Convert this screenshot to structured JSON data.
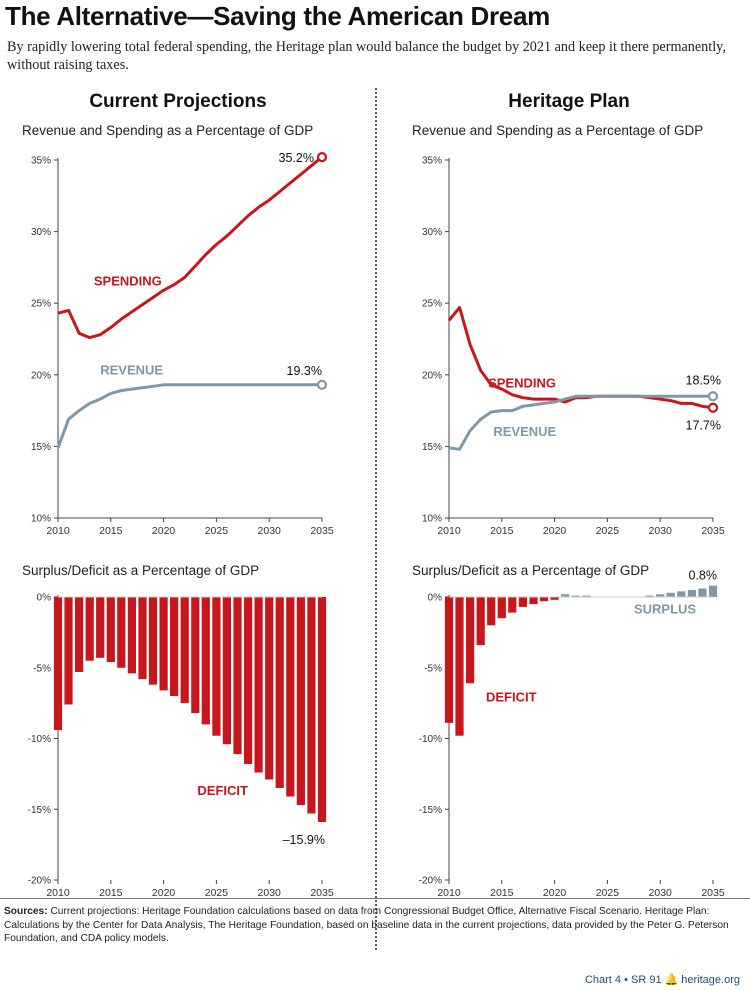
{
  "header": {
    "title": "The Alternative—Saving the American Dream",
    "subtitle": "By rapidly lowering total federal spending, the Heritage plan would balance the budget by 2021 and keep it there permanently, without raising taxes."
  },
  "left": {
    "heading": "Current Projections",
    "top_label": "Revenue and Spending as a Percentage of GDP",
    "bottom_label": "Surplus/Deficit as a Percentage of GDP"
  },
  "right": {
    "heading": "Heritage Plan",
    "top_label": "Revenue and Spending as a Percentage of GDP",
    "bottom_label": "Surplus/Deficit as a Percentage of GDP"
  },
  "colors": {
    "spending": "#c8161d",
    "revenue": "#7f98a8",
    "deficit": "#c8161d",
    "surplus": "#7f98a8",
    "axis": "#444444"
  },
  "chart_data": [
    {
      "id": "current-rev-spend",
      "type": "line",
      "title": "Revenue and Spending as a Percentage of GDP",
      "xlim": [
        2010,
        2035
      ],
      "ylim": [
        10,
        35
      ],
      "x_ticks": [
        "2010",
        "2015",
        "2020",
        "2025",
        "2030",
        "2035"
      ],
      "y_ticks": [
        {
          "v": 10,
          "label": "10%"
        },
        {
          "v": 15,
          "label": "15%"
        },
        {
          "v": 20,
          "label": "20%"
        },
        {
          "v": 25,
          "label": "25%"
        },
        {
          "v": 30,
          "label": "30%"
        },
        {
          "v": 35,
          "label": "35%"
        }
      ],
      "x": [
        2010,
        2011,
        2012,
        2013,
        2014,
        2015,
        2016,
        2017,
        2018,
        2019,
        2020,
        2021,
        2022,
        2023,
        2024,
        2025,
        2026,
        2027,
        2028,
        2029,
        2030,
        2031,
        2032,
        2033,
        2034,
        2035
      ],
      "series": [
        {
          "name": "SPENDING",
          "color_key": "spending",
          "values": [
            24.3,
            24.5,
            22.9,
            22.6,
            22.8,
            23.3,
            23.9,
            24.4,
            24.9,
            25.4,
            25.9,
            26.3,
            26.8,
            27.6,
            28.4,
            29.1,
            29.7,
            30.4,
            31.1,
            31.7,
            32.2,
            32.8,
            33.4,
            34.0,
            34.6,
            35.2
          ],
          "end_label": "35.2%"
        },
        {
          "name": "REVENUE",
          "color_key": "revenue",
          "values": [
            14.9,
            16.9,
            17.5,
            18.0,
            18.3,
            18.7,
            18.9,
            19.0,
            19.1,
            19.2,
            19.3,
            19.3,
            19.3,
            19.3,
            19.3,
            19.3,
            19.3,
            19.3,
            19.3,
            19.3,
            19.3,
            19.3,
            19.3,
            19.3,
            19.3,
            19.3
          ],
          "end_label": "19.3%"
        }
      ]
    },
    {
      "id": "current-deficit",
      "type": "bar",
      "title": "Surplus/Deficit as a Percentage of GDP",
      "xlim": [
        2010,
        2035
      ],
      "ylim": [
        -20,
        0
      ],
      "x_ticks": [
        "2010",
        "2015",
        "2020",
        "2025",
        "2030",
        "2035"
      ],
      "y_ticks": [
        {
          "v": 0,
          "label": "0%"
        },
        {
          "v": -5,
          "label": "-5%"
        },
        {
          "v": -10,
          "label": "-10%"
        },
        {
          "v": -15,
          "label": "-15%"
        },
        {
          "v": -20,
          "label": "-20%"
        }
      ],
      "x": [
        2010,
        2011,
        2012,
        2013,
        2014,
        2015,
        2016,
        2017,
        2018,
        2019,
        2020,
        2021,
        2022,
        2023,
        2024,
        2025,
        2026,
        2027,
        2028,
        2029,
        2030,
        2031,
        2032,
        2033,
        2034,
        2035
      ],
      "values": [
        -9.4,
        -7.6,
        -5.3,
        -4.5,
        -4.3,
        -4.6,
        -5.0,
        -5.4,
        -5.8,
        -6.2,
        -6.6,
        -7.0,
        -7.5,
        -8.2,
        -9.0,
        -9.8,
        -10.4,
        -11.1,
        -11.8,
        -12.4,
        -12.9,
        -13.5,
        -14.1,
        -14.7,
        -15.3,
        -15.9
      ],
      "color_key": "deficit",
      "labels": {
        "deficit": "DEFICIT"
      },
      "end_label": "–15.9%"
    },
    {
      "id": "heritage-rev-spend",
      "type": "line",
      "title": "Revenue and Spending as a Percentage of GDP",
      "xlim": [
        2010,
        2035
      ],
      "ylim": [
        10,
        35
      ],
      "x_ticks": [
        "2010",
        "2015",
        "2020",
        "2025",
        "2030",
        "2035"
      ],
      "y_ticks": [
        {
          "v": 10,
          "label": "10%"
        },
        {
          "v": 15,
          "label": "15%"
        },
        {
          "v": 20,
          "label": "20%"
        },
        {
          "v": 25,
          "label": "25%"
        },
        {
          "v": 30,
          "label": "30%"
        },
        {
          "v": 35,
          "label": "35%"
        }
      ],
      "x": [
        2010,
        2011,
        2012,
        2013,
        2014,
        2015,
        2016,
        2017,
        2018,
        2019,
        2020,
        2021,
        2022,
        2023,
        2024,
        2025,
        2026,
        2027,
        2028,
        2029,
        2030,
        2031,
        2032,
        2033,
        2034,
        2035
      ],
      "series": [
        {
          "name": "SPENDING",
          "color_key": "spending",
          "values": [
            23.8,
            24.7,
            22.1,
            20.3,
            19.3,
            19.0,
            18.6,
            18.4,
            18.3,
            18.3,
            18.3,
            18.1,
            18.4,
            18.4,
            18.5,
            18.5,
            18.5,
            18.5,
            18.5,
            18.4,
            18.3,
            18.2,
            18.0,
            18.0,
            17.8,
            17.7
          ],
          "end_label": "17.7%"
        },
        {
          "name": "REVENUE",
          "color_key": "revenue",
          "values": [
            14.9,
            14.8,
            16.1,
            16.9,
            17.4,
            17.5,
            17.5,
            17.8,
            17.9,
            18.0,
            18.1,
            18.3,
            18.5,
            18.5,
            18.5,
            18.5,
            18.5,
            18.5,
            18.5,
            18.5,
            18.5,
            18.5,
            18.5,
            18.5,
            18.5,
            18.5
          ],
          "end_label": "18.5%"
        }
      ]
    },
    {
      "id": "heritage-deficit",
      "type": "bar",
      "title": "Surplus/Deficit as a Percentage of GDP",
      "xlim": [
        2010,
        2035
      ],
      "ylim": [
        -20,
        0
      ],
      "x_ticks": [
        "2010",
        "2015",
        "2020",
        "2025",
        "2030",
        "2035"
      ],
      "y_ticks": [
        {
          "v": 0,
          "label": "0%"
        },
        {
          "v": -5,
          "label": "-5%"
        },
        {
          "v": -10,
          "label": "-10%"
        },
        {
          "v": -15,
          "label": "-15%"
        },
        {
          "v": -20,
          "label": "-20%"
        }
      ],
      "x": [
        2010,
        2011,
        2012,
        2013,
        2014,
        2015,
        2016,
        2017,
        2018,
        2019,
        2020,
        2021,
        2022,
        2023,
        2024,
        2025,
        2026,
        2027,
        2028,
        2029,
        2030,
        2031,
        2032,
        2033,
        2034,
        2035
      ],
      "values": [
        -8.9,
        -9.8,
        -6.1,
        -3.4,
        -2.0,
        -1.5,
        -1.1,
        -0.7,
        -0.5,
        -0.3,
        -0.2,
        0.2,
        0.1,
        0.1,
        0.0,
        0.0,
        0.0,
        0.0,
        0.0,
        0.1,
        0.2,
        0.3,
        0.4,
        0.5,
        0.6,
        0.8
      ],
      "color_key": "deficit",
      "labels": {
        "deficit": "DEFICIT",
        "surplus": "SURPLUS"
      },
      "end_label": "0.8%"
    }
  ],
  "footer": {
    "sources_label": "Sources:",
    "sources_text": " Current projections: Heritage Foundation calculations based on data from Congressional Budget Office, Alternative Fiscal Scenario.  Heritage Plan: Calculations by the Center for Data Analysis, The Heritage Foundation, based on baseline data in the current projections, data provided by the Peter G. Peterson Foundation, and CDA policy models.",
    "chart_id": "Chart 4 • SR 91",
    "site": "heritage.org"
  }
}
